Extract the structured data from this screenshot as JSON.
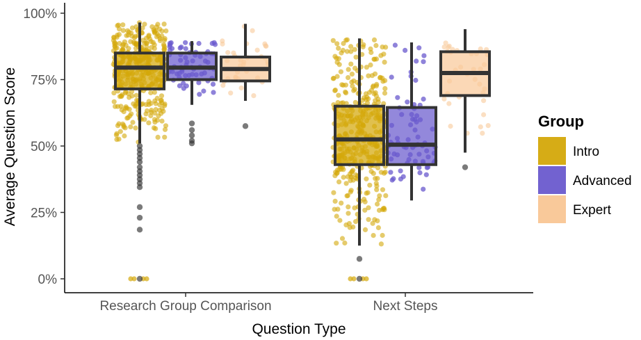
{
  "chart_data": {
    "type": "boxplot",
    "xlabel": "Question Type",
    "ylabel": "Average Question Score",
    "categories": [
      "Research Group Comparison",
      "Next Steps"
    ],
    "ylim": [
      0,
      100
    ],
    "yticks": [
      0,
      25,
      50,
      75,
      100
    ],
    "ytick_labels": [
      "0%",
      "25%",
      "50%",
      "75%",
      "100%"
    ],
    "grid": false,
    "legend": {
      "title": "Group",
      "position": "right"
    },
    "series": [
      {
        "name": "Intro",
        "color": "#D4A80A",
        "boxes": [
          {
            "category": "Research Group Comparison",
            "q1": 71.5,
            "median": 79.5,
            "q3": 85,
            "whisker_low": 51,
            "whisker_high": 96.5,
            "outliers": [
              50,
              48.5,
              47,
              45.5,
              44,
              42,
              40.5,
              39,
              37.5,
              36,
              34.5,
              27,
              23,
              18.5,
              0
            ],
            "n_points": 420,
            "jitter_min": 0,
            "jitter_max": 97
          },
          {
            "category": "Next Steps",
            "q1": 43,
            "median": 52.5,
            "q3": 65,
            "whisker_low": 12.5,
            "whisker_high": 90.5,
            "outliers": [
              7.5,
              0
            ],
            "n_points": 420,
            "jitter_min": 0,
            "jitter_max": 90
          }
        ]
      },
      {
        "name": "Advanced",
        "color": "#6A5ACD",
        "boxes": [
          {
            "category": "Research Group Comparison",
            "q1": 75,
            "median": 79.5,
            "q3": 85,
            "whisker_low": 65.5,
            "whisker_high": 89.5,
            "outliers": [
              58.5,
              56,
              54,
              52,
              51
            ],
            "n_points": 65,
            "jitter_min": 51,
            "jitter_max": 90
          },
          {
            "category": "Next Steps",
            "q1": 43,
            "median": 50.5,
            "q3": 64.5,
            "whisker_low": 29.5,
            "whisker_high": 89,
            "outliers": [],
            "n_points": 75,
            "jitter_min": 30,
            "jitter_max": 89
          }
        ]
      },
      {
        "name": "Expert",
        "color": "#F9C99A",
        "boxes": [
          {
            "category": "Research Group Comparison",
            "q1": 74.5,
            "median": 79,
            "q3": 83.5,
            "whisker_low": 67,
            "whisker_high": 96,
            "outliers": [
              57.5
            ],
            "n_points": 35,
            "jitter_min": 57,
            "jitter_max": 96
          },
          {
            "category": "Next Steps",
            "q1": 69,
            "median": 77.5,
            "q3": 85.5,
            "whisker_low": 47.5,
            "whisker_high": 94,
            "outliers": [
              42
            ],
            "n_points": 35,
            "jitter_min": 42,
            "jitter_max": 95
          }
        ]
      }
    ]
  }
}
